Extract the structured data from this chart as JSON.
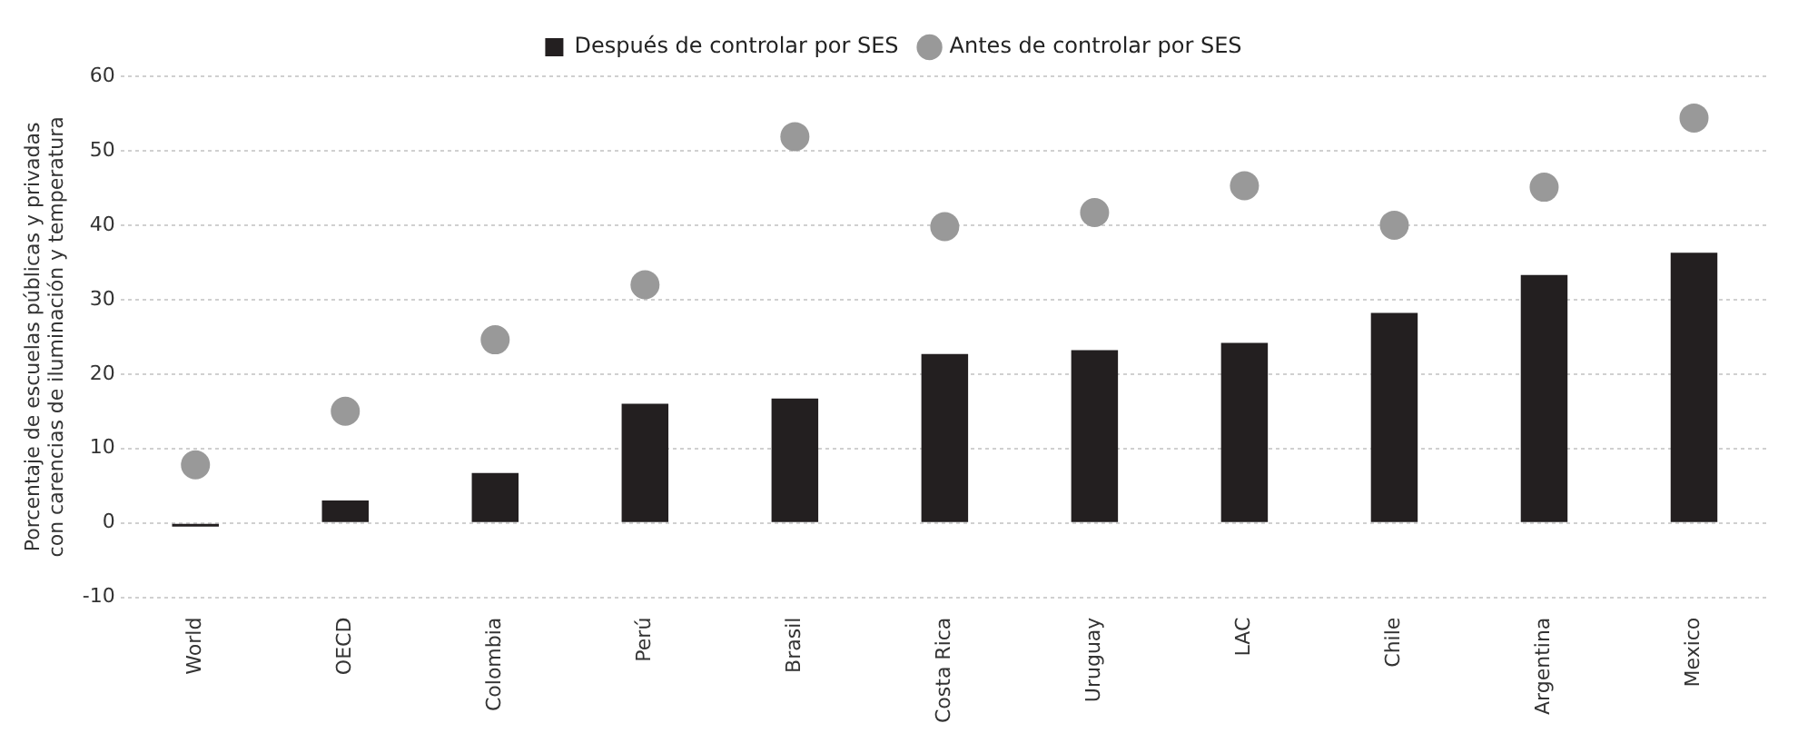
{
  "chart_data": {
    "type": "bar",
    "ylabel": "Porcentaje de escuelas públicas y privadas con carencias de iluminación y temperatura",
    "categories": [
      "World",
      "OECD",
      "Colombia",
      "Perú",
      "Brasil",
      "Costa Rica",
      "Uruguay",
      "LAC",
      "Chile",
      "Argentina",
      "Mexico"
    ],
    "series": [
      {
        "name": "Después de controlar por SES",
        "color": "#231f20",
        "values": [
          -0.5,
          3,
          6.7,
          16,
          16.7,
          22.7,
          23.2,
          24.2,
          28.2,
          33.3,
          36.3
        ]
      },
      {
        "name": "Antes de controlar por SES",
        "type": "scatter",
        "color": "#999999",
        "values": [
          7.8,
          15,
          24.6,
          32,
          51.9,
          39.8,
          41.7,
          45.3,
          40,
          45.1,
          54.4
        ]
      }
    ],
    "ylim": [
      -10,
      60
    ],
    "yticks": [
      -10,
      0,
      10,
      20,
      30,
      40,
      50,
      60
    ],
    "grid": "y",
    "legend": "top",
    "marker": "circle"
  }
}
